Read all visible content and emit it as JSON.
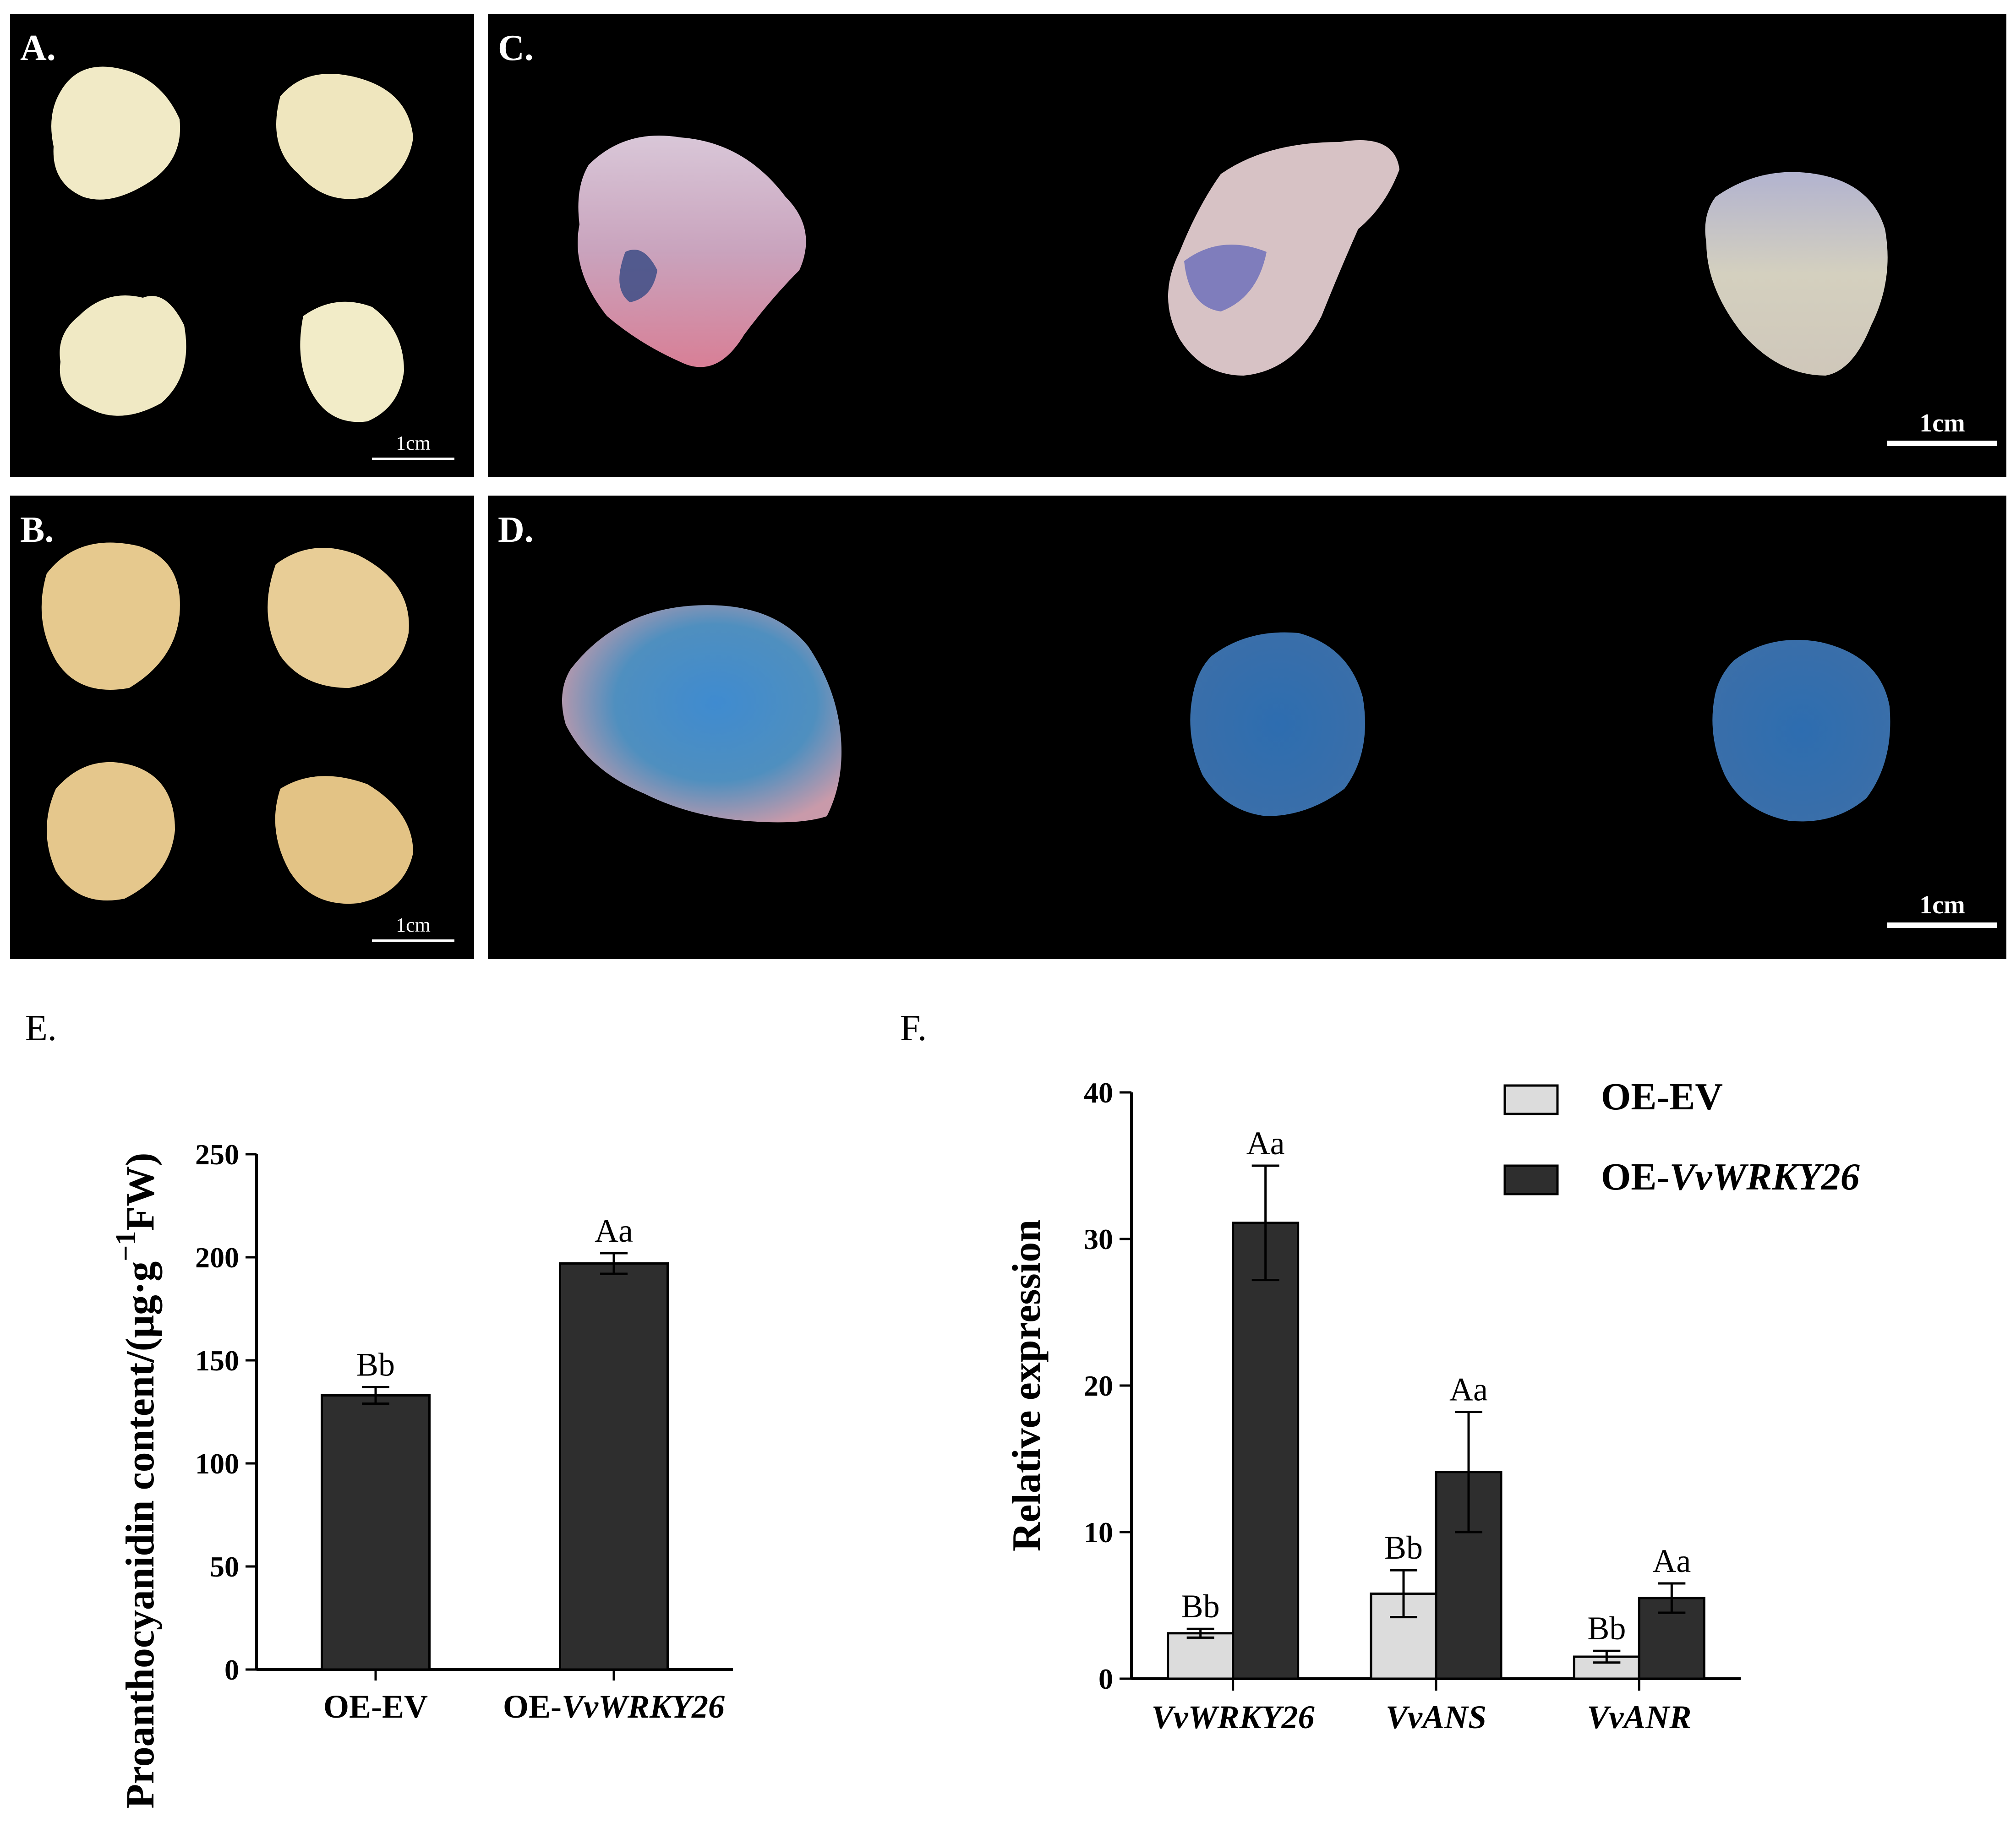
{
  "panels": {
    "A": {
      "label": "A.",
      "scale": "1cm"
    },
    "B": {
      "label": "B.",
      "scale": "1cm"
    },
    "C": {
      "label": "C.",
      "scale": "1cm"
    },
    "D": {
      "label": "D.",
      "scale": "1cm"
    }
  },
  "colors": {
    "photo_bg": "#000000",
    "callus_untreated": "#f1eac6",
    "callus_b": "#e6c98e",
    "bar_dark": "#2e2e2e",
    "bar_light": "#dcdcdc",
    "stain_blue": "#2f7ec2",
    "stain_pink": "#d98aa2"
  },
  "chart_data": [
    {
      "panel_label": "E.",
      "type": "bar",
      "ylabel": "Proanthocyanidin content/(μg·g",
      "ylabel_sup": "−1",
      "ylabel_tail": "FW)",
      "ylim": [
        0,
        250
      ],
      "yticks": [
        "0",
        "50",
        "100",
        "150",
        "200",
        "250"
      ],
      "categories": [
        {
          "prefix": "OE-EV",
          "italic": ""
        },
        {
          "prefix": "OE-",
          "italic": "VvWRKY26"
        }
      ],
      "values": [
        133,
        197
      ],
      "errors": [
        4,
        5
      ],
      "significance": [
        "Bb",
        "Aa"
      ]
    },
    {
      "panel_label": "F.",
      "type": "bar",
      "ylabel": "Relative expression",
      "ylim": [
        0,
        40
      ],
      "yticks": [
        "0",
        "10",
        "20",
        "30",
        "40"
      ],
      "categories": [
        "VvWRKY26",
        "VvANS",
        "VvANR"
      ],
      "legend_placement": "top-right",
      "series": [
        {
          "name": "OE-EV",
          "name_prefix": "OE-EV",
          "name_italic": "",
          "color": "#dcdcdc",
          "values": [
            3.1,
            5.8,
            1.5
          ],
          "errors": [
            0.3,
            1.6,
            0.4
          ],
          "significance": [
            "Bb",
            "Bb",
            "Bb"
          ]
        },
        {
          "name": "OE-VvWRKY26",
          "name_prefix": "OE-",
          "name_italic": "VvWRKY26",
          "color": "#2e2e2e",
          "values": [
            31.1,
            14.1,
            5.5
          ],
          "errors": [
            3.9,
            4.1,
            1.0
          ],
          "significance": [
            "Aa",
            "Aa",
            "Aa"
          ]
        }
      ]
    }
  ]
}
